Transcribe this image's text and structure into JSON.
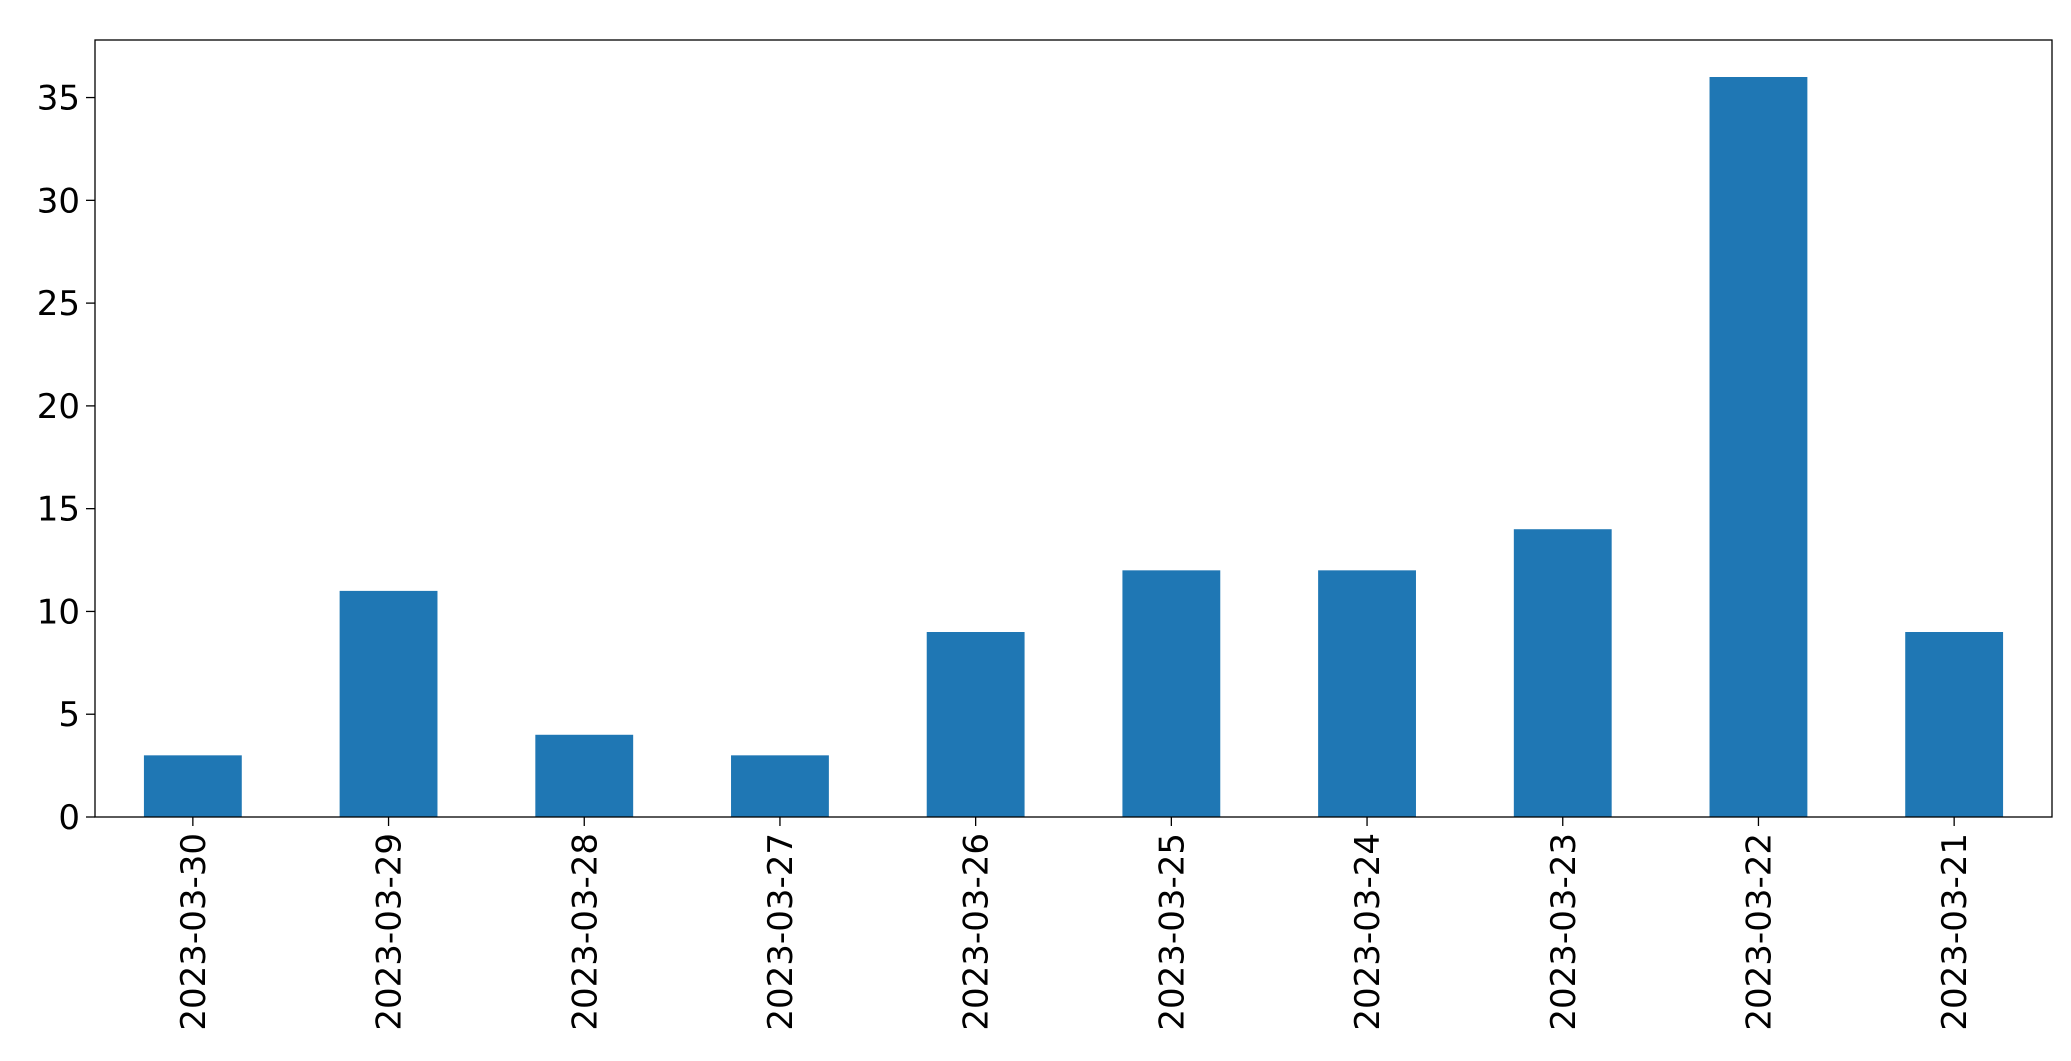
{
  "chart_data": {
    "type": "bar",
    "categories": [
      "2023-03-30",
      "2023-03-29",
      "2023-03-28",
      "2023-03-27",
      "2023-03-26",
      "2023-03-25",
      "2023-03-24",
      "2023-03-23",
      "2023-03-22",
      "2023-03-21"
    ],
    "values": [
      3,
      11,
      4,
      3,
      9,
      12,
      12,
      14,
      36,
      9
    ],
    "color": "#1f77b4",
    "ylim": [
      0,
      37.8
    ],
    "yticks": [
      0,
      5,
      10,
      15,
      20,
      25,
      30,
      35
    ],
    "grid": false
  }
}
